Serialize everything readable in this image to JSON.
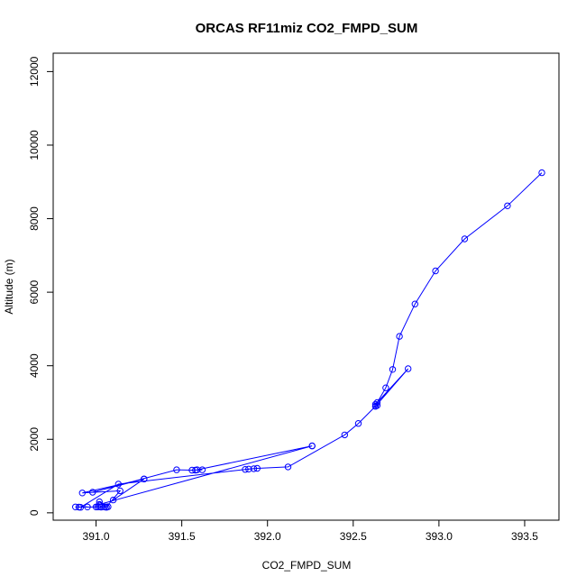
{
  "chart_data": {
    "type": "line",
    "title": "ORCAS RF11miz CO2_FMPD_SUM",
    "xlabel": "CO2_FMPD_SUM",
    "ylabel": "Altitude (m)",
    "xlim": [
      390.75,
      393.7
    ],
    "ylim": [
      -200,
      12500
    ],
    "xticks": [
      391.0,
      391.5,
      392.0,
      392.5,
      393.0,
      393.5
    ],
    "xtick_labels": [
      "391.0",
      "391.5",
      "392.0",
      "392.5",
      "393.0",
      "393.5"
    ],
    "yticks": [
      0,
      2000,
      4000,
      6000,
      8000,
      10000,
      12000
    ],
    "ytick_labels": [
      "0",
      "2000",
      "4000",
      "6000",
      "8000",
      "10000",
      "12000"
    ],
    "grid": false,
    "markers": "open-circle",
    "series": [
      {
        "color": "#0000ff",
        "points": [
          [
            393.6,
            9250
          ],
          [
            393.4,
            8350
          ],
          [
            393.15,
            7450
          ],
          [
            392.98,
            6580
          ],
          [
            392.86,
            5680
          ],
          [
            392.77,
            4800
          ],
          [
            392.73,
            3900
          ],
          [
            392.69,
            3400
          ],
          [
            392.64,
            3000
          ],
          [
            392.63,
            2900
          ],
          [
            392.64,
            2920
          ],
          [
            392.63,
            2950
          ],
          [
            392.82,
            3920
          ],
          [
            392.63,
            2900
          ],
          [
            392.53,
            2430
          ],
          [
            392.45,
            2120
          ],
          [
            392.12,
            1250
          ],
          [
            391.94,
            1210
          ],
          [
            391.89,
            1190
          ],
          [
            391.92,
            1200
          ],
          [
            391.87,
            1180
          ],
          [
            391.13,
            780
          ],
          [
            390.91,
            150
          ],
          [
            390.88,
            160
          ],
          [
            390.95,
            160
          ],
          [
            390.9,
            155
          ],
          [
            391.05,
            160
          ],
          [
            391.07,
            165
          ],
          [
            391.02,
            165
          ],
          [
            391.06,
            150
          ],
          [
            391.01,
            160
          ],
          [
            391.05,
            160
          ],
          [
            391.03,
            155
          ],
          [
            391.0,
            160
          ],
          [
            391.02,
            300
          ],
          [
            391.06,
            160
          ],
          [
            391.14,
            600
          ],
          [
            390.92,
            540
          ],
          [
            391.28,
            920
          ],
          [
            391.1,
            350
          ],
          [
            391.28,
            920
          ],
          [
            390.98,
            560
          ],
          [
            391.47,
            1170
          ],
          [
            391.56,
            1160
          ],
          [
            391.59,
            1170
          ],
          [
            391.62,
            1170
          ],
          [
            391.58,
            1160
          ],
          [
            392.26,
            1820
          ],
          [
            392.26,
            1820
          ],
          [
            391.02,
            230
          ]
        ]
      }
    ]
  }
}
